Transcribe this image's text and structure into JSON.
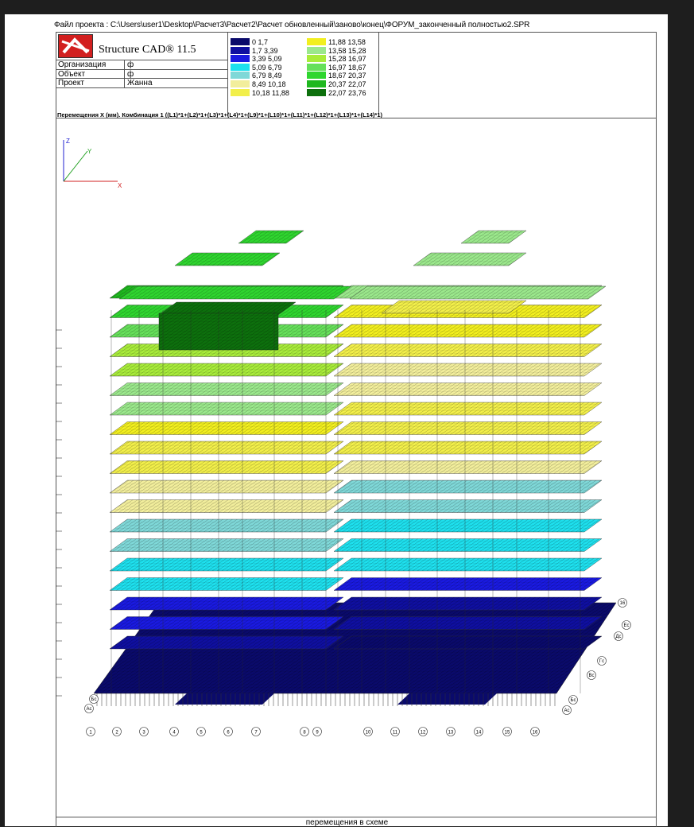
{
  "header": {
    "path": "Файл проекта : C:\\Users\\user1\\Desktop\\Расчет3\\Расчет2\\Расчет обновленный\\заново\\конец\\ФОРУМ_законченный полностью2.SPR"
  },
  "titleblock": {
    "product": "Structure CAD® 11.5",
    "rows": [
      {
        "key": "Организация",
        "value": "ф"
      },
      {
        "key": "Объект",
        "value": "ф"
      },
      {
        "key": "Проект",
        "value": "Жанна"
      }
    ]
  },
  "legend": {
    "items": [
      {
        "range": "0   1,7",
        "color": "#0a0a6b"
      },
      {
        "range": "1,7   3,39",
        "color": "#0f0fa0"
      },
      {
        "range": "3,39   5,09",
        "color": "#1a1ae0"
      },
      {
        "range": "5,09   6,79",
        "color": "#1ee0ee"
      },
      {
        "range": "6,79   8,49",
        "color": "#7fd8d8"
      },
      {
        "range": "8,49   10,18",
        "color": "#f2ee9c"
      },
      {
        "range": "10,18   11,88",
        "color": "#f2ef4a"
      },
      {
        "range": "11,88   13,58",
        "color": "#f2ef1f"
      },
      {
        "range": "13,58   15,28",
        "color": "#9be88c"
      },
      {
        "range": "15,28   16,97",
        "color": "#a8ec3a"
      },
      {
        "range": "16,97   18,67",
        "color": "#66e05a"
      },
      {
        "range": "18,67   20,37",
        "color": "#2fd62f"
      },
      {
        "range": "20,37   22,07",
        "color": "#1fb81f"
      },
      {
        "range": "22,07   23,76",
        "color": "#0d700d"
      }
    ]
  },
  "caption": "Перемещения X (мм). Комбинация 1 ((L1)*1+(L2)*1+(L3)*1+(L4)*1+(L9)*1+(L10)*1+(L11)*1+(L12)*1+(L13)*1+(L14)*1)",
  "axes": {
    "x": "X",
    "y": "Y",
    "z": "Z"
  },
  "grid_numbers": [
    "1",
    "2",
    "3",
    "4",
    "5",
    "6",
    "7",
    "8",
    "9",
    "10",
    "11",
    "12",
    "13",
    "14",
    "15",
    "16"
  ],
  "grid_letters_left": [
    "Бс",
    "Ас"
  ],
  "grid_letters_right": [
    "16",
    "Ес",
    "Дс",
    "Гс",
    "Вс",
    "Бс",
    "Ас"
  ],
  "footer": "перемещения в схеме"
}
